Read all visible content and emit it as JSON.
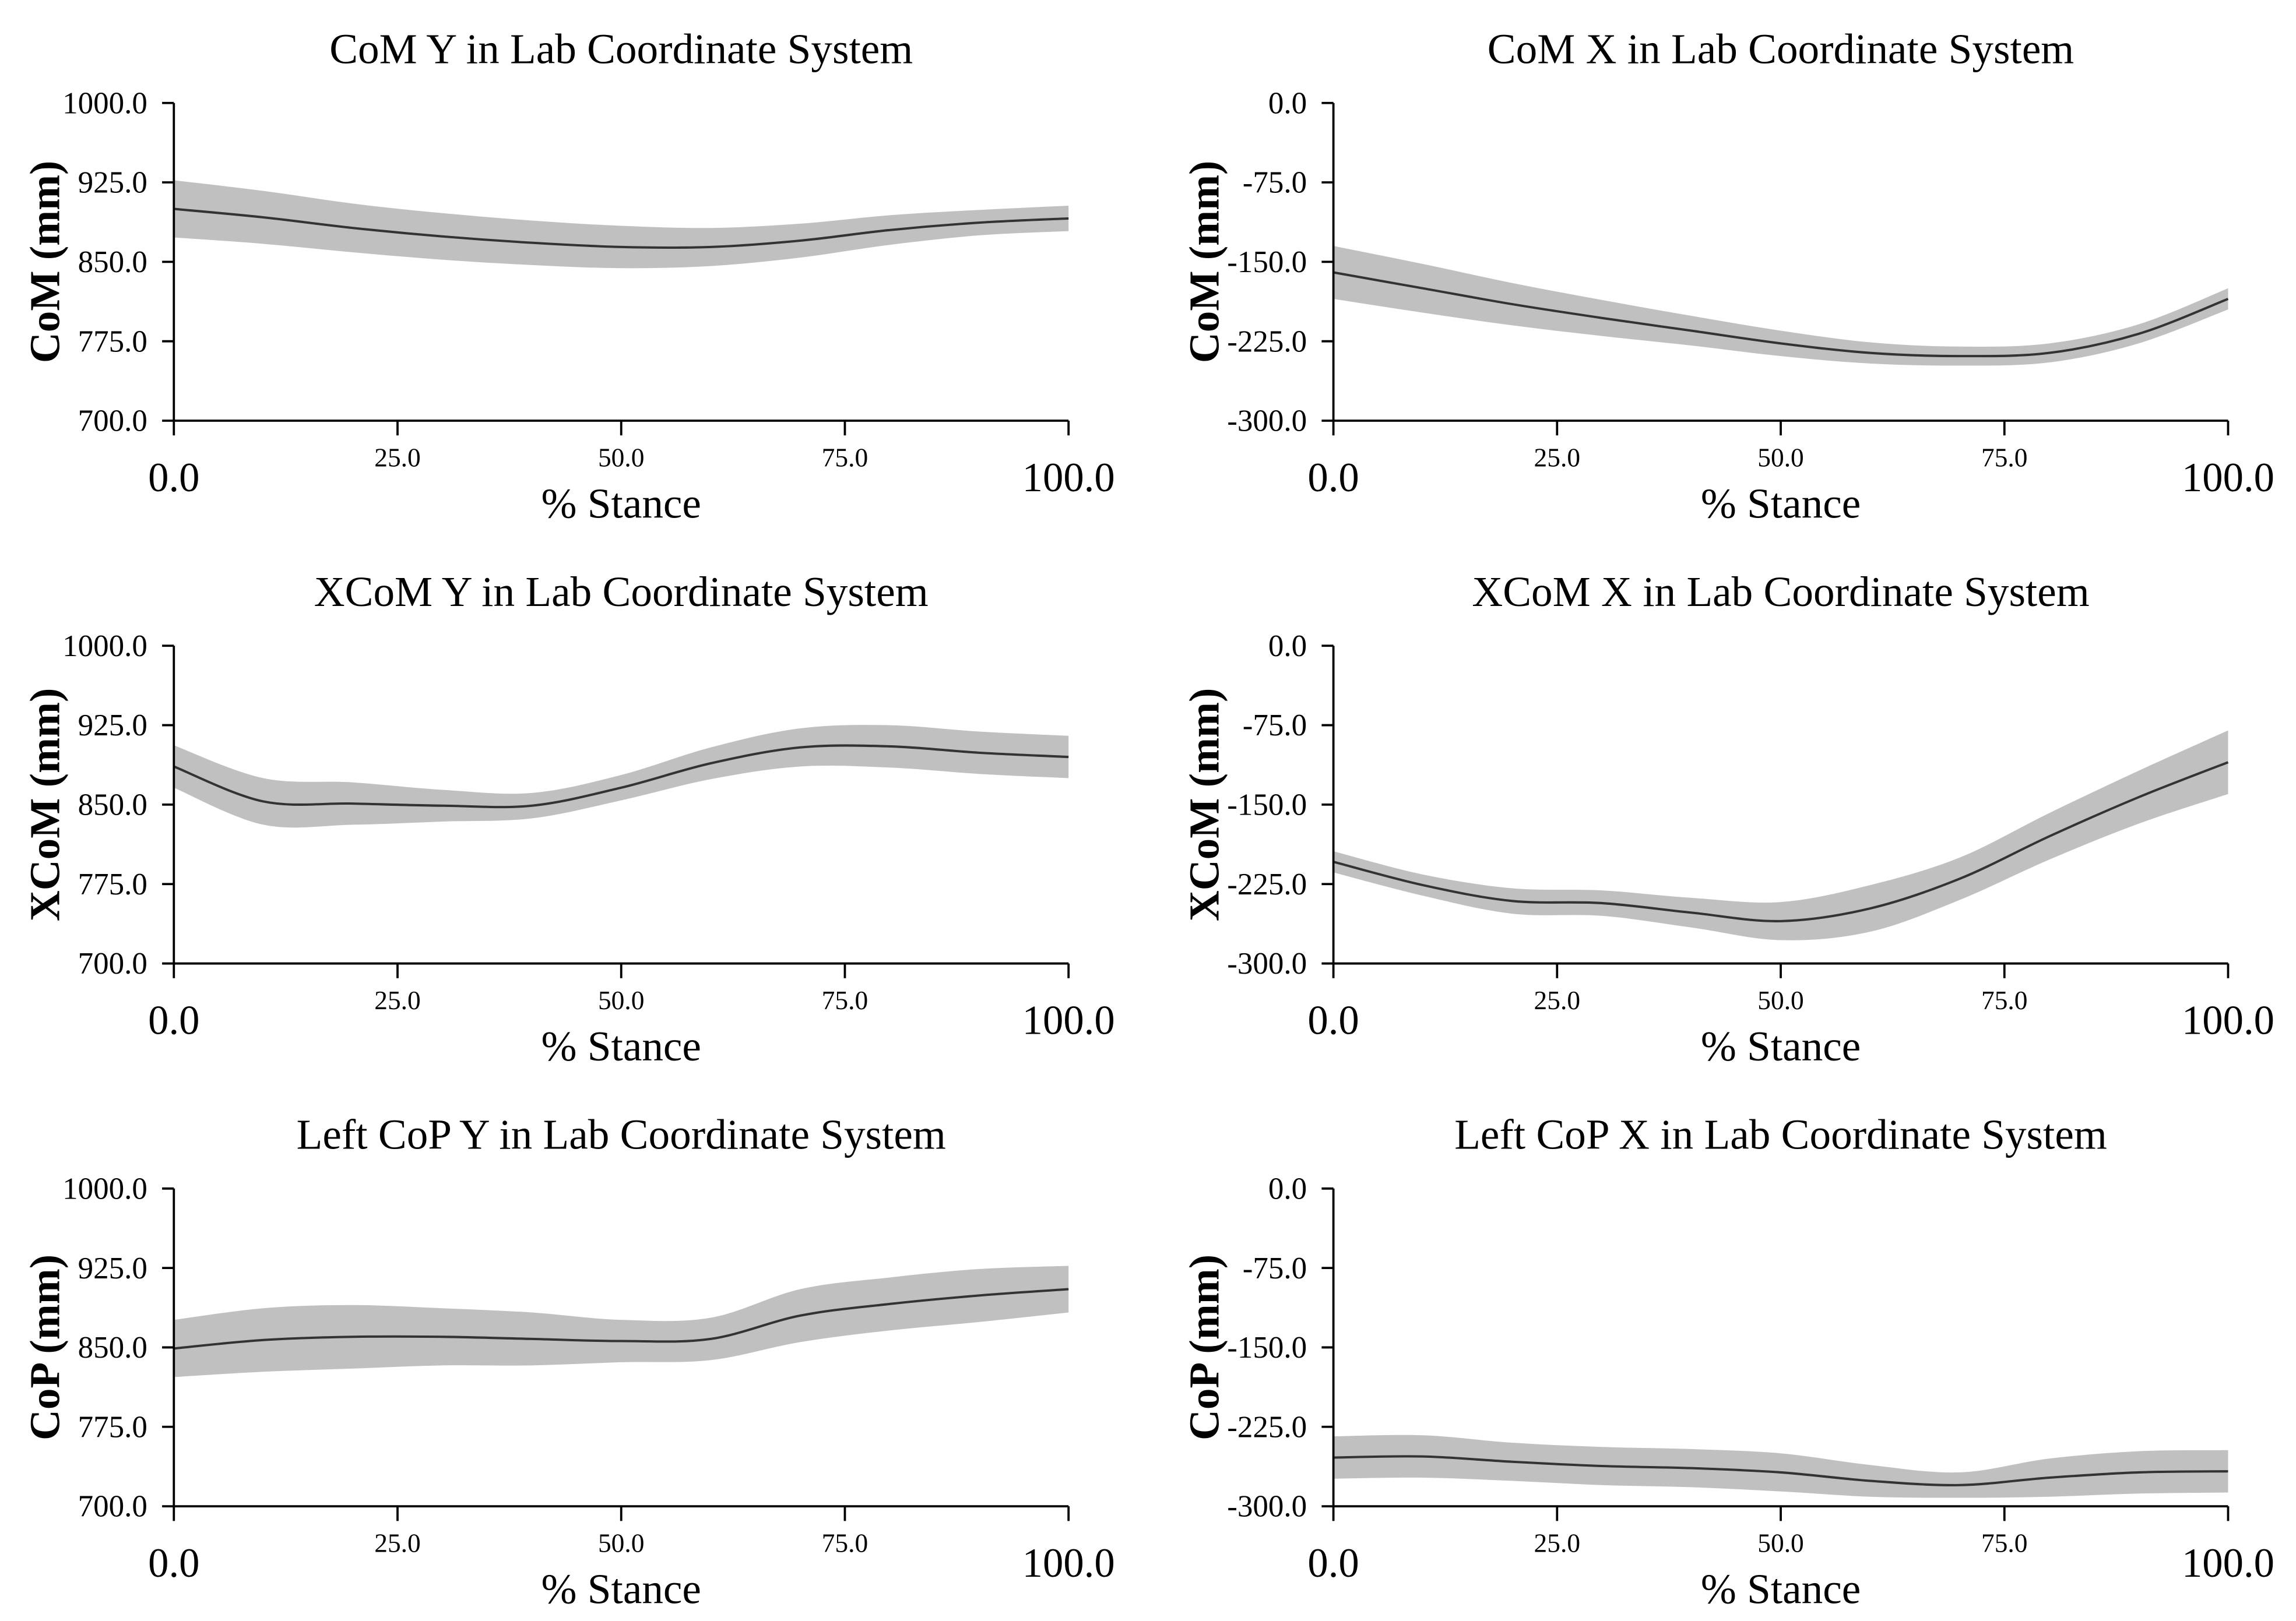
{
  "chart_data": [
    {
      "type": "line",
      "title": "CoM Y in Lab Coordinate System",
      "xlabel": "% Stance",
      "ylabel": "CoM (mm)",
      "xlim": [
        0,
        100
      ],
      "ylim": [
        700,
        1000
      ],
      "yticks": [
        "1000.0",
        "925.0",
        "850.0",
        "775.0",
        "700.0"
      ],
      "xticks": [
        "0.0",
        "25.0",
        "50.0",
        "75.0",
        "100.0"
      ],
      "x": [
        0,
        10,
        20,
        30,
        40,
        50,
        60,
        70,
        80,
        90,
        100
      ],
      "series": [
        {
          "name": "mean",
          "values": [
            900,
            892,
            882,
            874,
            868,
            864,
            864,
            870,
            880,
            887,
            891
          ]
        },
        {
          "name": "sd",
          "values": [
            27,
            25,
            23,
            22,
            21,
            20,
            18,
            16,
            14,
            12,
            12
          ]
        }
      ]
    },
    {
      "type": "line",
      "title": "CoM X in Lab Coordinate System",
      "xlabel": "% Stance",
      "ylabel": "CoM (mm)",
      "xlim": [
        0,
        100
      ],
      "ylim": [
        -300,
        0
      ],
      "yticks": [
        "0.0",
        "-75.0",
        "-150.0",
        "-225.0",
        "-300.0"
      ],
      "xticks": [
        "0.0",
        "25.0",
        "50.0",
        "75.0",
        "100.0"
      ],
      "x": [
        0,
        10,
        20,
        30,
        40,
        50,
        60,
        70,
        80,
        90,
        100
      ],
      "series": [
        {
          "name": "mean",
          "values": [
            -160,
            -175,
            -190,
            -203,
            -215,
            -227,
            -236,
            -239,
            -236,
            -218,
            -185
          ]
        },
        {
          "name": "sd",
          "values": [
            25,
            23,
            20,
            17,
            14,
            12,
            10,
            9,
            9,
            9,
            10
          ]
        }
      ]
    },
    {
      "type": "line",
      "title": "XCoM Y in Lab Coordinate System",
      "xlabel": "% Stance",
      "ylabel": "XCoM (mm)",
      "xlim": [
        0,
        100
      ],
      "ylim": [
        700,
        1000
      ],
      "yticks": [
        "1000.0",
        "925.0",
        "850.0",
        "775.0",
        "700.0"
      ],
      "xticks": [
        "0.0",
        "25.0",
        "50.0",
        "75.0",
        "100.0"
      ],
      "x": [
        0,
        10,
        20,
        30,
        40,
        50,
        60,
        70,
        80,
        90,
        100
      ],
      "series": [
        {
          "name": "mean",
          "values": [
            886,
            853,
            851,
            849,
            849,
            866,
            889,
            904,
            905,
            899,
            895
          ]
        },
        {
          "name": "sd",
          "values": [
            20,
            22,
            20,
            15,
            12,
            12,
            15,
            18,
            20,
            20,
            20
          ]
        }
      ]
    },
    {
      "type": "line",
      "title": "XCoM X in Lab Coordinate System",
      "xlabel": "% Stance",
      "ylabel": "XCoM (mm)",
      "xlim": [
        0,
        100
      ],
      "ylim": [
        -300,
        0
      ],
      "yticks": [
        "0.0",
        "-75.0",
        "-150.0",
        "-225.0",
        "-300.0"
      ],
      "xticks": [
        "0.0",
        "25.0",
        "50.0",
        "75.0",
        "100.0"
      ],
      "x": [
        0,
        10,
        20,
        30,
        40,
        50,
        60,
        70,
        80,
        90,
        100
      ],
      "series": [
        {
          "name": "mean",
          "values": [
            -204,
            -226,
            -241,
            -243,
            -252,
            -260,
            -248,
            -220,
            -180,
            -143,
            -110
          ]
        },
        {
          "name": "sd",
          "values": [
            10,
            10,
            12,
            12,
            14,
            18,
            22,
            20,
            22,
            25,
            30
          ]
        }
      ]
    },
    {
      "type": "line",
      "title": "Left CoP Y  in Lab Coordinate System",
      "xlabel": "% Stance",
      "ylabel": "CoP (mm)",
      "xlim": [
        0,
        100
      ],
      "ylim": [
        700,
        1000
      ],
      "yticks": [
        "1000.0",
        "925.0",
        "850.0",
        "775.0",
        "700.0"
      ],
      "xticks": [
        "0.0",
        "25.0",
        "50.0",
        "75.0",
        "100.0"
      ],
      "x": [
        0,
        10,
        20,
        30,
        40,
        50,
        60,
        70,
        80,
        90,
        100
      ],
      "series": [
        {
          "name": "mean",
          "values": [
            849,
            857,
            860,
            860,
            858,
            856,
            858,
            880,
            891,
            899,
            905
          ]
        },
        {
          "name": "sd",
          "values": [
            27,
            30,
            30,
            27,
            25,
            20,
            20,
            25,
            25,
            25,
            22
          ]
        }
      ]
    },
    {
      "type": "line",
      "title": "Left CoP X in Lab Coordinate System",
      "xlabel": "% Stance",
      "ylabel": "CoP (mm)",
      "xlim": [
        0,
        100
      ],
      "ylim": [
        -300,
        0
      ],
      "yticks": [
        "0.0",
        "-75.0",
        "-150.0",
        "-225.0",
        "-300.0"
      ],
      "xticks": [
        "0.0",
        "25.0",
        "50.0",
        "75.0",
        "100.0"
      ],
      "x": [
        0,
        10,
        20,
        30,
        40,
        50,
        60,
        70,
        80,
        90,
        100
      ],
      "series": [
        {
          "name": "mean",
          "values": [
            -254,
            -253,
            -258,
            -262,
            -264,
            -268,
            -276,
            -280,
            -273,
            -268,
            -267
          ]
        },
        {
          "name": "sd",
          "values": [
            20,
            20,
            18,
            18,
            18,
            18,
            15,
            12,
            18,
            20,
            20
          ]
        }
      ]
    }
  ],
  "colors": {
    "band": "#c0c0c0",
    "line": "#333333",
    "axis": "#000000"
  }
}
